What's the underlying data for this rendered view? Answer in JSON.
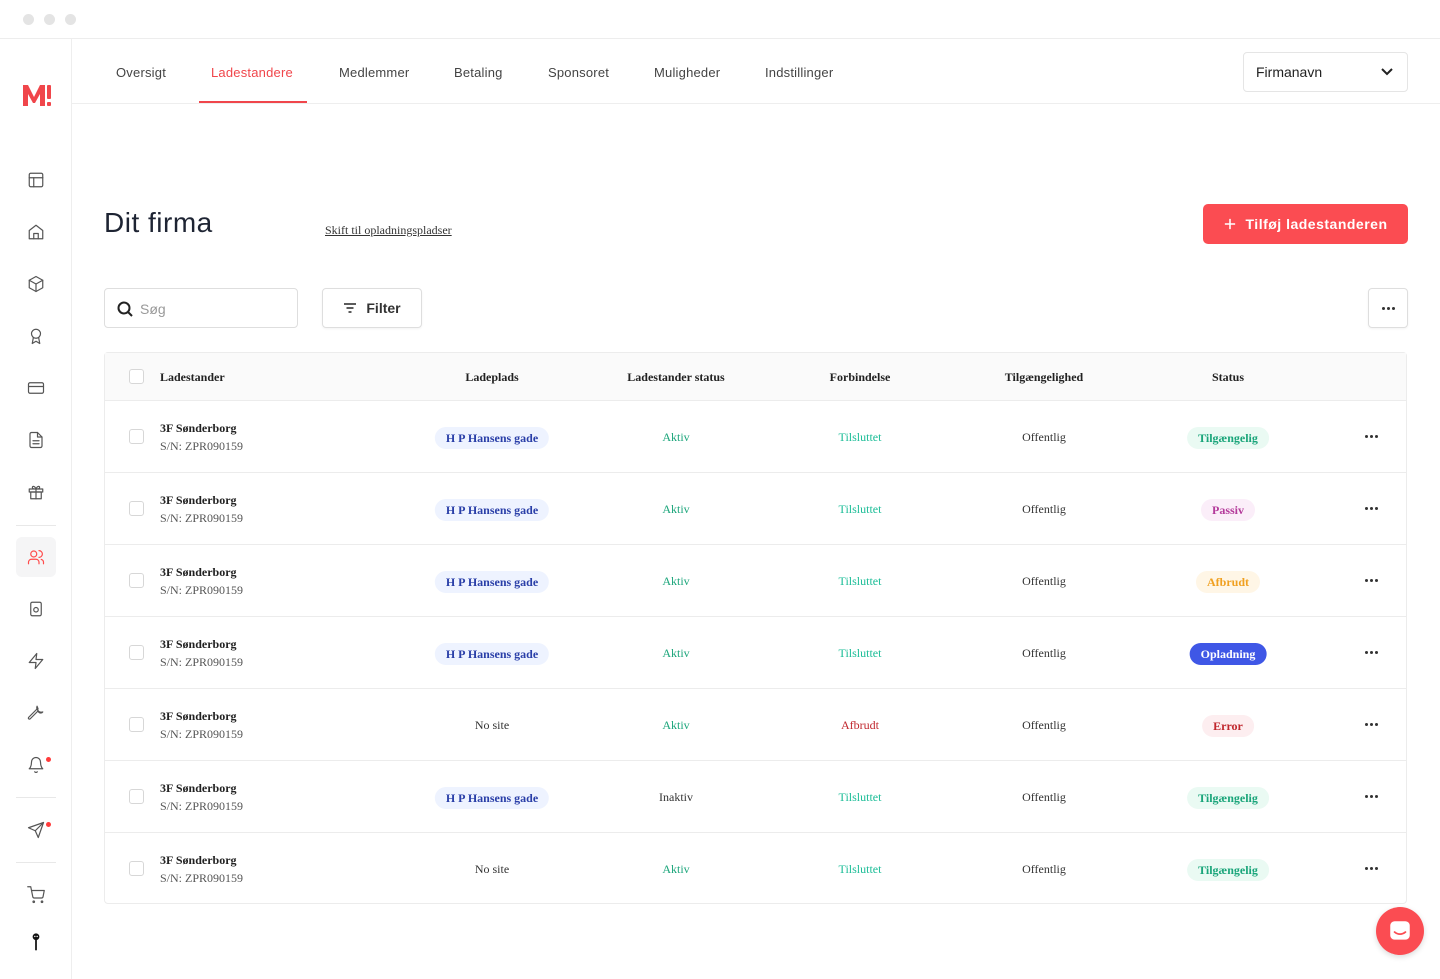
{
  "nav": {
    "tabs": [
      {
        "label": "Oversigt",
        "active": false
      },
      {
        "label": "Ladestandere",
        "active": true
      },
      {
        "label": "Medlemmer",
        "active": false
      },
      {
        "label": "Betaling",
        "active": false
      },
      {
        "label": "Sponsoret",
        "active": false
      },
      {
        "label": "Muligheder",
        "active": false
      },
      {
        "label": "Indstillinger",
        "active": false
      }
    ],
    "company_select": "Firmanavn"
  },
  "page": {
    "title": "Dit firma",
    "switch_link": "Skift til opladningspladser",
    "add_button": "Tilføj ladestanderen"
  },
  "toolbar": {
    "search_placeholder": "Søg",
    "filter_label": "Filter"
  },
  "colors": {
    "accent": "#fb4c52",
    "green": "#1aa57a",
    "teal": "#1bbd97",
    "red": "#c0262d"
  },
  "table": {
    "headers": [
      "Ladestander",
      "Ladeplads",
      "Ladestander status",
      "Forbindelse",
      "Tilgængelighed",
      "Status"
    ],
    "rows": [
      {
        "name": "3F Sønderborg",
        "serial": "S/N: ZPR090159",
        "site": "H P Hansens gade",
        "site_pill": true,
        "charger_status": "Aktiv",
        "connection": "Tilsluttet",
        "availability": "Offentlig",
        "status": "Tilgængelig"
      },
      {
        "name": "3F Sønderborg",
        "serial": "S/N: ZPR090159",
        "site": "H P Hansens gade",
        "site_pill": true,
        "charger_status": "Aktiv",
        "connection": "Tilsluttet",
        "availability": "Offentlig",
        "status": "Passiv"
      },
      {
        "name": "3F Sønderborg",
        "serial": "S/N: ZPR090159",
        "site": "H P Hansens gade",
        "site_pill": true,
        "charger_status": "Aktiv",
        "connection": "Tilsluttet",
        "availability": "Offentlig",
        "status": "Afbrudt"
      },
      {
        "name": "3F Sønderborg",
        "serial": "S/N: ZPR090159",
        "site": "H P Hansens gade",
        "site_pill": true,
        "charger_status": "Aktiv",
        "connection": "Tilsluttet",
        "availability": "Offentlig",
        "status": "Opladning"
      },
      {
        "name": "3F Sønderborg",
        "serial": "S/N: ZPR090159",
        "site": "No site",
        "site_pill": false,
        "charger_status": "Aktiv",
        "connection": "Afbrudt",
        "availability": "Offentlig",
        "status": "Error"
      },
      {
        "name": "3F Sønderborg",
        "serial": "S/N: ZPR090159",
        "site": "H P Hansens gade",
        "site_pill": true,
        "charger_status": "Inaktiv",
        "connection": "Tilsluttet",
        "availability": "Offentlig",
        "status": "Tilgængelig"
      },
      {
        "name": "3F Sønderborg",
        "serial": "S/N: ZPR090159",
        "site": "No site",
        "site_pill": false,
        "charger_status": "Aktiv",
        "connection": "Tilsluttet",
        "availability": "Offentlig",
        "status": "Tilgængelig"
      }
    ]
  },
  "sidebar": {
    "icons": [
      "layout-icon",
      "home-icon",
      "box-icon",
      "award-icon",
      "credit-card-icon",
      "document-icon",
      "gift-icon",
      "users-icon",
      "device-icon",
      "lightning-icon",
      "wrench-icon",
      "bell-icon",
      "send-icon",
      "cart-icon",
      "avatar-icon"
    ],
    "active": "users-icon"
  }
}
